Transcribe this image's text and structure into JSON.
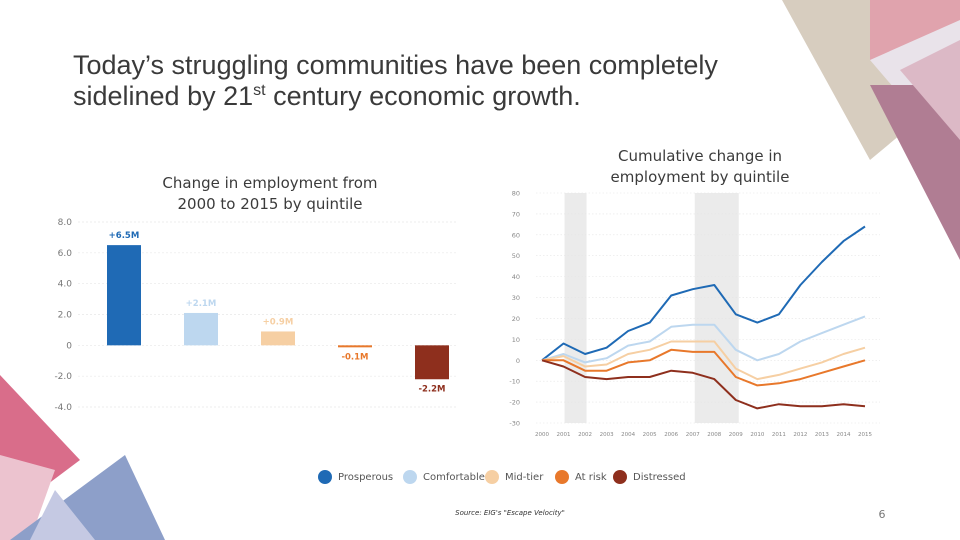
{
  "slide": {
    "title_line1": "Today’s struggling communities have been completely",
    "title_line2_a": "sidelined by 21",
    "title_line2_sup": "st",
    "title_line2_b": " century economic growth.",
    "page_number": "6",
    "source": "Source: EIG's \"Escape Velocity\""
  },
  "colors": {
    "prosperous": "#1f6ab5",
    "comfortable": "#bdd7ef",
    "midtier": "#f6cfa3",
    "atrisk": "#e8782b",
    "distressed": "#8e2f1d",
    "band": "#ebebeb",
    "accent_pink": "#d96d8a",
    "accent_mauve": "#b07d93",
    "accent_blue": "#8d9fc9",
    "accent_tan": "#d7cdbf"
  },
  "legend": [
    {
      "label": "Prosperous",
      "color_key": "prosperous"
    },
    {
      "label": "Comfortable",
      "color_key": "comfortable"
    },
    {
      "label": "Mid-tier",
      "color_key": "midtier"
    },
    {
      "label": "At risk",
      "color_key": "atrisk"
    },
    {
      "label": "Distressed",
      "color_key": "distressed"
    }
  ],
  "chart_data": [
    {
      "type": "bar",
      "title": "Change in employment from 2000 to 2015 by quintile",
      "categories": [
        "Prosperous",
        "Comfortable",
        "Mid-tier",
        "At risk",
        "Distressed"
      ],
      "values": [
        6.5,
        2.1,
        0.9,
        -0.1,
        -2.2
      ],
      "data_labels": [
        "+6.5M",
        "+2.1M",
        "+0.9M",
        "-0.1M",
        "-2.2M"
      ],
      "yticks": [
        "8.0",
        "6.0",
        "4.0",
        "2.0",
        "0",
        "-2.0",
        "-4.0"
      ],
      "ylim": [
        -4,
        8
      ],
      "xlabel": "",
      "ylabel": ""
    },
    {
      "type": "line",
      "title": "Cumulative change in employment by quintile",
      "x": [
        "2000",
        "2001",
        "2002",
        "2003",
        "2004",
        "2005",
        "2006",
        "2007",
        "2008",
        "2009",
        "2010",
        "2011",
        "2012",
        "2013",
        "2014",
        "2015"
      ],
      "yticks": [
        "80",
        "70",
        "60",
        "50",
        "40",
        "30",
        "20",
        "10",
        "0",
        "-10",
        "-20",
        "-30"
      ],
      "ylim": [
        -30,
        80
      ],
      "recession_bands": [
        [
          "2001",
          "2002"
        ],
        "2007-2009"
      ],
      "series": [
        {
          "name": "Prosperous",
          "color_key": "prosperous",
          "values": [
            0,
            8,
            3,
            6,
            14,
            18,
            31,
            34,
            36,
            22,
            18,
            22,
            36,
            47,
            57,
            64
          ]
        },
        {
          "name": "Comfortable",
          "color_key": "comfortable",
          "values": [
            0,
            3,
            -1,
            1,
            7,
            9,
            16,
            17,
            17,
            5,
            0,
            3,
            9,
            13,
            17,
            21
          ]
        },
        {
          "name": "Mid-tier",
          "color_key": "midtier",
          "values": [
            0,
            2,
            -3,
            -2,
            3,
            5,
            9,
            9,
            9,
            -4,
            -9,
            -7,
            -4,
            -1,
            3,
            6
          ]
        },
        {
          "name": "At risk",
          "color_key": "atrisk",
          "values": [
            0,
            0,
            -5,
            -5,
            -1,
            0,
            5,
            4,
            4,
            -8,
            -12,
            -11,
            -9,
            -6,
            -3,
            0
          ]
        },
        {
          "name": "Distressed",
          "color_key": "distressed",
          "values": [
            0,
            -3,
            -8,
            -9,
            -8,
            -8,
            -5,
            -6,
            -9,
            -19,
            -23,
            -21,
            -22,
            -22,
            -21,
            -22
          ]
        }
      ],
      "xlabel": "",
      "ylabel": ""
    }
  ]
}
